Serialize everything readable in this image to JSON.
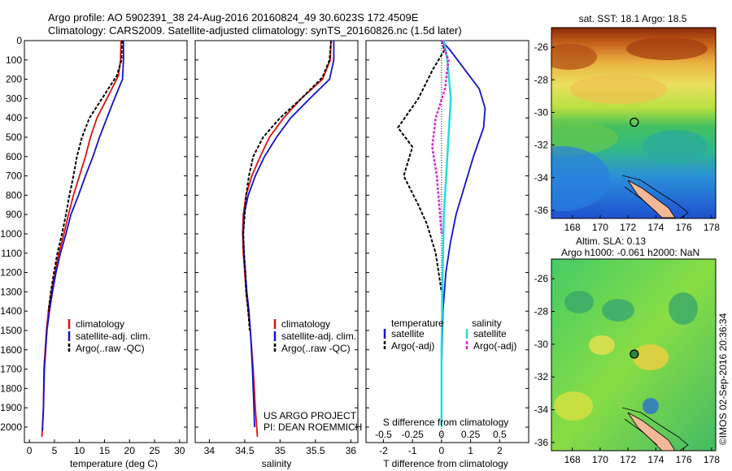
{
  "header": {
    "line1": "Argo profile: AO 5902391_38 24-Aug-2016 20160824_49 30.6023S 172.4509E",
    "line2": "Climatology: CARS2009. Satellite-adjusted climatology: synTS_20160826.nc (1.5d later)"
  },
  "side_label": "©IMOS 02-Sep-2016 20:36:34",
  "colors": {
    "climatology": "#dd1111",
    "satellite": "#1111cc",
    "argo": "#000000",
    "salinity_satellite": "#22dddd",
    "salinity_argo": "#dd22dd",
    "land": "#f4b898"
  },
  "chart_data": [
    {
      "id": "temperature-profile",
      "type": "line",
      "xlabel": "temperature (deg C)",
      "ylabel": "",
      "xlim": [
        -1,
        31.5
      ],
      "ylim": [
        2080,
        0
      ],
      "xticks": [
        0,
        5,
        10,
        15,
        20,
        25,
        30
      ],
      "yticks": [
        0,
        100,
        200,
        300,
        400,
        500,
        600,
        700,
        800,
        900,
        1000,
        1100,
        1200,
        1300,
        1400,
        1500,
        1600,
        1700,
        1800,
        1900,
        2000
      ],
      "legend": [
        "climatology",
        "satellite-adj. clim.",
        "Argo(..raw -QC)"
      ],
      "legend_placement": "lower-right",
      "series": [
        {
          "name": "climatology",
          "x": [
            18.3,
            18.2,
            17.8,
            15.5,
            13.5,
            12.2,
            11.2,
            10.0,
            8.8,
            7.8,
            6.9,
            5.9,
            5.1,
            4.4,
            3.8,
            3.4,
            2.9,
            2.8,
            2.5
          ],
          "y": [
            0,
            100,
            180,
            300,
            400,
            500,
            600,
            700,
            800,
            900,
            1000,
            1100,
            1200,
            1300,
            1400,
            1500,
            1700,
            1900,
            2050
          ]
        },
        {
          "name": "satellite-adj. clim.",
          "x": [
            18.8,
            18.8,
            18.6,
            17.0,
            15.5,
            14.0,
            12.7,
            11.2,
            9.8,
            8.3,
            7.3,
            6.2,
            5.3,
            4.6,
            4.0,
            3.5,
            3.0,
            2.8,
            2.6
          ],
          "y": [
            0,
            100,
            200,
            300,
            400,
            500,
            600,
            700,
            800,
            900,
            1000,
            1100,
            1200,
            1300,
            1400,
            1500,
            1700,
            1900,
            2020
          ]
        },
        {
          "name": "Argo(..raw -QC)",
          "x": [
            18.5,
            18.4,
            17.5,
            14.5,
            12.0,
            10.5,
            9.5,
            8.8,
            8.0,
            7.3,
            6.5,
            5.6,
            4.9,
            4.3,
            3.8
          ],
          "y": [
            0,
            100,
            180,
            300,
            400,
            500,
            600,
            700,
            800,
            900,
            1000,
            1100,
            1200,
            1300,
            1400
          ]
        }
      ]
    },
    {
      "id": "salinity-profile",
      "type": "line",
      "xlabel": "salinity",
      "xlim": [
        33.8,
        36.1
      ],
      "ylim": [
        2080,
        0
      ],
      "xticks": [
        34,
        34.5,
        35,
        35.5,
        36
      ],
      "legend": [
        "climatology",
        "satellite-adj. clim.",
        "Argo(..raw -QC)"
      ],
      "legend_placement": "lower-right",
      "annotation": [
        "US ARGO PROJECT",
        "PI: DEAN ROEMMICH"
      ],
      "series": [
        {
          "name": "climatology",
          "x": [
            35.72,
            35.71,
            35.6,
            35.3,
            35.05,
            34.85,
            34.72,
            34.6,
            34.52,
            34.48,
            34.47,
            34.48,
            34.5,
            34.52,
            34.55,
            34.58,
            34.62,
            34.65,
            34.68
          ],
          "y": [
            0,
            100,
            200,
            300,
            400,
            500,
            600,
            700,
            800,
            900,
            1000,
            1100,
            1200,
            1300,
            1400,
            1500,
            1700,
            1900,
            2050
          ]
        },
        {
          "name": "satellite-adj. clim.",
          "x": [
            35.76,
            35.76,
            35.7,
            35.42,
            35.15,
            34.95,
            34.78,
            34.65,
            34.55,
            34.49,
            34.48,
            34.49,
            34.51,
            34.53,
            34.56,
            34.58,
            34.61,
            34.63,
            34.64
          ],
          "y": [
            0,
            100,
            200,
            300,
            400,
            500,
            600,
            700,
            800,
            900,
            1000,
            1100,
            1200,
            1300,
            1400,
            1500,
            1700,
            1900,
            2000
          ]
        },
        {
          "name": "Argo(..raw -QC)",
          "x": [
            35.72,
            35.7,
            35.6,
            35.3,
            35.0,
            34.76,
            34.62,
            34.56,
            34.52,
            34.5,
            34.48,
            34.49,
            34.51,
            34.52,
            34.55,
            34.57
          ],
          "y": [
            0,
            100,
            190,
            300,
            400,
            500,
            600,
            700,
            800,
            900,
            1000,
            1100,
            1200,
            1300,
            1400,
            1500
          ]
        }
      ]
    },
    {
      "id": "difference-profile",
      "type": "line",
      "xlabel": "T difference from climatology",
      "xlabel_top": "S difference from climatology",
      "xlim": [
        -2.6,
        3.0
      ],
      "ylim": [
        2080,
        0
      ],
      "xticks": [
        -2,
        -1,
        0,
        1,
        2
      ],
      "xticks_top": [
        -0.5,
        -0.25,
        0,
        0.25,
        0.5
      ],
      "legend_titles": [
        "temperature",
        "salinity"
      ],
      "legend": [
        "satellite",
        "Argo(-adj)",
        "satellite",
        "Argo(-adj)"
      ],
      "legend_placement": "lower-center",
      "series": [
        {
          "name": "temperature satellite",
          "x": [
            0.0,
            0.3,
            0.8,
            1.3,
            1.5,
            1.45,
            1.1,
            0.8,
            0.5,
            0.3,
            0.15,
            0.05,
            0.0,
            0.0
          ],
          "y": [
            0,
            50,
            150,
            250,
            350,
            450,
            600,
            750,
            900,
            1050,
            1200,
            1400,
            1700,
            2000
          ]
        },
        {
          "name": "temperature Argo(-adj)",
          "x": [
            0.0,
            0.1,
            -0.3,
            -0.8,
            -1.5,
            -1.0,
            -1.3,
            -0.8,
            -0.5,
            -0.2,
            0.0
          ],
          "y": [
            0,
            50,
            150,
            300,
            450,
            550,
            700,
            850,
            950,
            1100,
            1300
          ]
        },
        {
          "name": "salinity satellite",
          "x": [
            0.02,
            0.05,
            0.08,
            0.06,
            0.04,
            0.02,
            0.01,
            0.0,
            0.0
          ],
          "y": [
            0,
            100,
            300,
            500,
            700,
            900,
            1200,
            1600,
            2000
          ]
        },
        {
          "name": "salinity Argo(-adj)",
          "x": [
            0.0,
            0.06,
            0.03,
            -0.05,
            -0.08,
            -0.04,
            -0.02,
            0.0
          ],
          "y": [
            0,
            100,
            250,
            400,
            550,
            700,
            850,
            1000
          ]
        }
      ]
    },
    {
      "id": "sst-map",
      "type": "heatmap",
      "title": "sat. SST: 18.1 Argo: 18.5",
      "xlim": [
        166.5,
        178.3
      ],
      "ylim": [
        -36.5,
        -24.8
      ],
      "xticks": [
        168,
        170,
        172,
        174,
        176,
        178
      ],
      "yticks": [
        -26,
        -28,
        -30,
        -32,
        -34,
        -36
      ],
      "argo_position": {
        "lon": 172.45,
        "lat": -30.6
      }
    },
    {
      "id": "sla-map",
      "type": "heatmap",
      "title": [
        "Altim. SLA: 0.13",
        "Argo h1000: -0.061 h2000: NaN"
      ],
      "xlim": [
        166.5,
        178.3
      ],
      "ylim": [
        -36.5,
        -24.8
      ],
      "xticks": [
        168,
        170,
        172,
        174,
        176,
        178
      ],
      "yticks": [
        -26,
        -28,
        -30,
        -32,
        -34,
        -36
      ],
      "argo_position": {
        "lon": 172.45,
        "lat": -30.6
      }
    }
  ]
}
